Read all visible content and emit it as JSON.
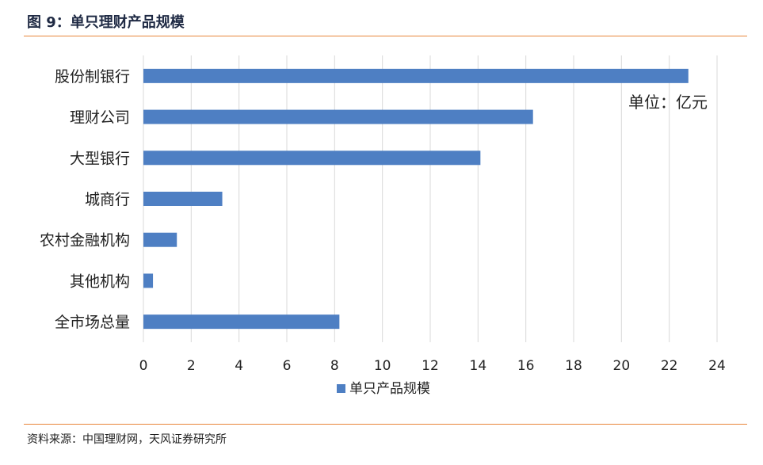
{
  "figure_title": "图 9：单只理财产品规模",
  "source_note": "资料来源：中国理财网，天风证券研究所",
  "colors": {
    "bar": "#4e7fc3",
    "grid": "#d9d9d9",
    "rule": "#e8863a"
  },
  "chart_data": {
    "type": "bar",
    "orientation": "horizontal",
    "title": "",
    "xlabel": "",
    "ylabel": "",
    "unit_note": "单位：亿元",
    "categories": [
      "股份制银行",
      "理财公司",
      "大型银行",
      "城商行",
      "农村金融机构",
      "其他机构",
      "全市场总量"
    ],
    "series": [
      {
        "name": "单只产品规模",
        "values": [
          22.8,
          16.3,
          14.1,
          3.3,
          1.4,
          0.4,
          8.2
        ]
      }
    ],
    "xlim": [
      0,
      24
    ],
    "xticks": [
      0,
      2,
      4,
      6,
      8,
      10,
      12,
      14,
      16,
      18,
      20,
      22,
      24
    ],
    "grid": true,
    "legend_position": "bottom"
  }
}
